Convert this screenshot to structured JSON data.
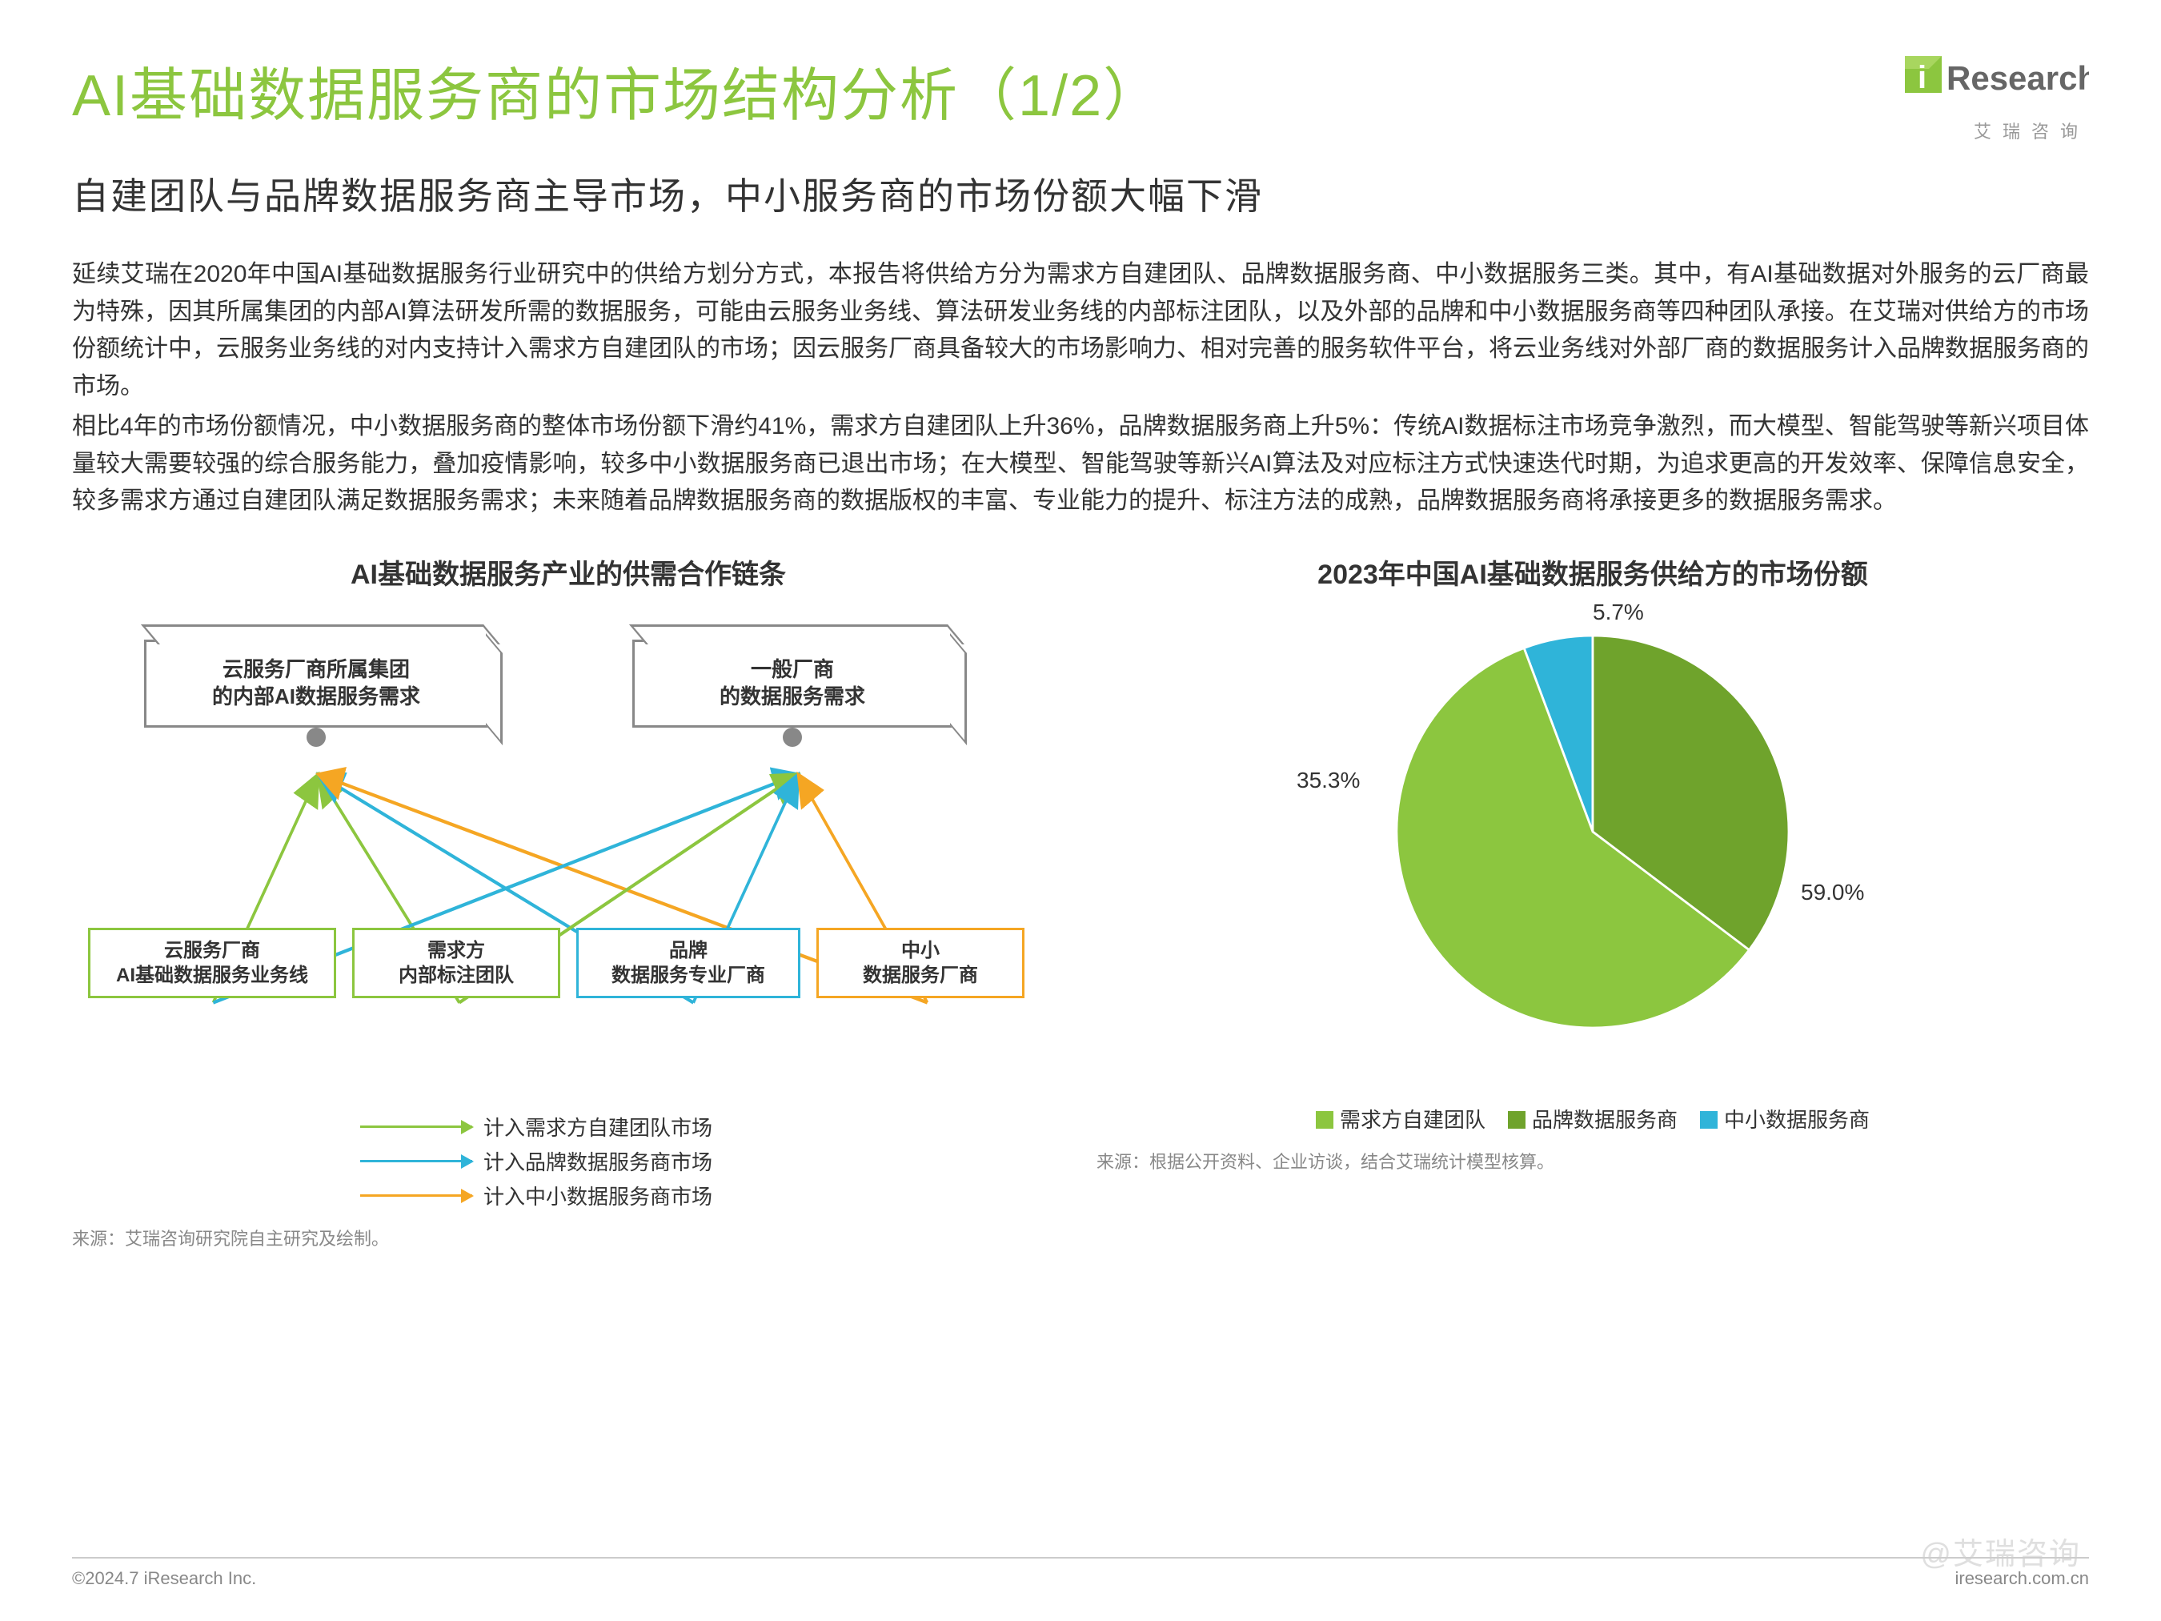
{
  "header": {
    "title": "AI基础数据服务商的市场结构分析（1/2）",
    "logo_text": "Research",
    "logo_prefix": "i",
    "logo_sub": "艾瑞咨询",
    "title_color": "#8cc63f"
  },
  "subtitle": "自建团队与品牌数据服务商主导市场，中小服务商的市场份额大幅下滑",
  "body_p1": "延续艾瑞在2020年中国AI基础数据服务行业研究中的供给方划分方式，本报告将供给方分为需求方自建团队、品牌数据服务商、中小数据服务三类。其中，有AI基础数据对外服务的云厂商最为特殊，因其所属集团的内部AI算法研发所需的数据服务，可能由云服务业务线、算法研发业务线的内部标注团队，以及外部的品牌和中小数据服务商等四种团队承接。在艾瑞对供给方的市场份额统计中，云服务业务线的对内支持计入需求方自建团队的市场；因云服务厂商具备较大的市场影响力、相对完善的服务软件平台，将云业务线对外部厂商的数据服务计入品牌数据服务商的市场。",
  "body_p2": "相比4年的市场份额情况，中小数据服务商的整体市场份额下滑约41%，需求方自建团队上升36%，品牌数据服务商上升5%：传统AI数据标注市场竞争激烈，而大模型、智能驾驶等新兴项目体量较大需要较强的综合服务能力，叠加疫情影响，较多中小数据服务商已退出市场；在大模型、智能驾驶等新兴AI算法及对应标注方式快速迭代时期，为追求更高的开发效率、保障信息安全，较多需求方通过自建团队满足数据服务需求；未来随着品牌数据服务商的数据版权的丰富、专业能力的提升、标注方法的成熟，品牌数据服务商将承接更多的数据服务需求。",
  "diagram": {
    "title": "AI基础数据服务产业的供需合作链条",
    "top_boxes": [
      {
        "line1": "云服务厂商所属集团",
        "line2": "的内部AI数据服务需求"
      },
      {
        "line1": "一般厂商",
        "line2": "的数据服务需求"
      }
    ],
    "bottom_boxes": [
      {
        "line1": "云服务厂商",
        "line2": "AI基础数据服务业务线",
        "color": "#8cc63f"
      },
      {
        "line1": "需求方",
        "line2": "内部标注团队",
        "color": "#8cc63f"
      },
      {
        "line1": "品牌",
        "line2": "数据服务专业厂商",
        "color": "#2fb4d9"
      },
      {
        "line1": "中小",
        "line2": "数据服务厂商",
        "color": "#f5a623"
      }
    ],
    "legend": [
      {
        "color": "#8cc63f",
        "label": "计入需求方自建团队市场"
      },
      {
        "color": "#2fb4d9",
        "label": "计入品牌数据服务商市场"
      },
      {
        "color": "#f5a623",
        "label": "计入中小数据服务商市场"
      }
    ],
    "source": "来源：艾瑞咨询研究院自主研究及绘制。",
    "arrows": [
      {
        "from": 0,
        "to": 0,
        "color": "#8cc63f"
      },
      {
        "from": 1,
        "to": 0,
        "color": "#8cc63f"
      },
      {
        "from": 2,
        "to": 0,
        "color": "#2fb4d9"
      },
      {
        "from": 3,
        "to": 0,
        "color": "#f5a623"
      },
      {
        "from": 0,
        "to": 1,
        "color": "#2fb4d9"
      },
      {
        "from": 1,
        "to": 1,
        "color": "#8cc63f"
      },
      {
        "from": 2,
        "to": 1,
        "color": "#2fb4d9"
      },
      {
        "from": 3,
        "to": 1,
        "color": "#f5a623"
      }
    ]
  },
  "pie": {
    "title": "2023年中国AI基础数据服务供给方的市场份额",
    "slices": [
      {
        "label": "需求方自建团队",
        "value": 59.0,
        "text": "59.0%",
        "color": "#8cc63f"
      },
      {
        "label": "品牌数据服务商",
        "value": 35.3,
        "text": "35.3%",
        "color": "#6fa32c"
      },
      {
        "label": "中小数据服务商",
        "value": 5.7,
        "text": "5.7%",
        "color": "#2fb4d9"
      }
    ],
    "source": "来源：根据公开资料、企业访谈，结合艾瑞统计模型核算。"
  },
  "footer": {
    "left": "©2024.7 iResearch Inc.",
    "right": "iresearch.com.cn"
  },
  "watermark": "@艾瑞咨询",
  "colors": {
    "green": "#8cc63f",
    "darkgreen": "#6fa32c",
    "cyan": "#2fb4d9",
    "orange": "#f5a623",
    "grey": "#888888"
  }
}
